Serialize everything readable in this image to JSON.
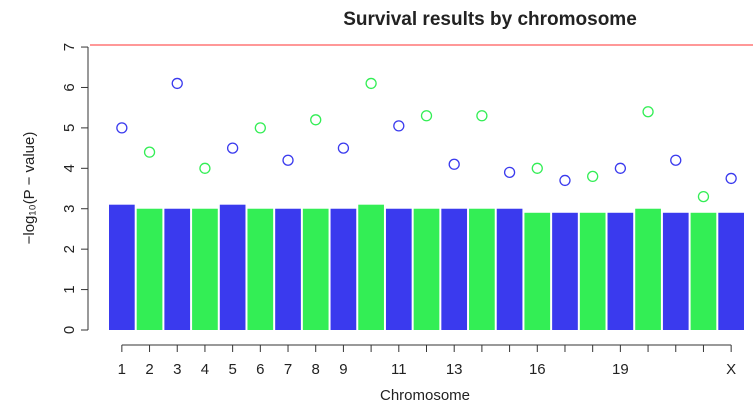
{
  "chart_data": {
    "type": "manhattan",
    "title": "Survival results by chromosome",
    "x_label": "Chromosome",
    "y_label": "−log₁₀(P − value)",
    "categories": [
      "1",
      "2",
      "3",
      "4",
      "5",
      "6",
      "7",
      "8",
      "9",
      null,
      "11",
      null,
      "13",
      null,
      null,
      "16",
      null,
      null,
      "19",
      null,
      null,
      null,
      "X"
    ],
    "values": [
      5.0,
      4.4,
      6.1,
      4.0,
      4.5,
      5.0,
      4.2,
      5.2,
      4.5,
      6.1,
      5.05,
      5.3,
      4.1,
      5.3,
      3.9,
      4.0,
      3.7,
      3.8,
      4.0,
      5.4,
      4.2,
      3.3,
      3.75
    ],
    "bulk_values": [
      3.1,
      3.0,
      3.0,
      3.0,
      3.1,
      3.0,
      3.0,
      3.0,
      3.0,
      3.1,
      3.0,
      3.0,
      3.0,
      3.0,
      3.0,
      2.9,
      2.9,
      2.9,
      2.9,
      3.0,
      2.9,
      2.9,
      2.9
    ],
    "colors": [
      "#3a3aee",
      "#33ee55"
    ],
    "threshold": 7.05,
    "threshold_color": "#ff7777",
    "ylim": [
      0,
      7.1
    ],
    "yticks": [
      0,
      1,
      2,
      3,
      4,
      5,
      6,
      7
    ]
  }
}
